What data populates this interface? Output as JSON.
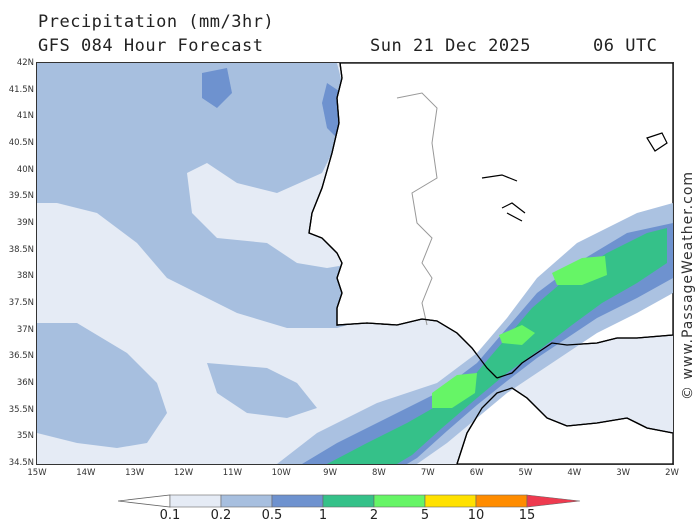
{
  "header": {
    "title": "Precipitation (mm/3hr)",
    "subtitle": "GFS 084 Hour Forecast",
    "datetime": "Sun 21 Dec 2025",
    "utc": "06 UTC"
  },
  "credit": "© www.PassageWeather.com",
  "axes": {
    "lat_labels": [
      "42N",
      "41.5N",
      "41N",
      "40.5N",
      "40N",
      "39.5N",
      "39N",
      "38.5N",
      "38N",
      "37.5N",
      "37N",
      "36.5N",
      "36N",
      "35.5N",
      "35N",
      "34.5N"
    ],
    "lon_labels": [
      "15W",
      "14W",
      "13W",
      "12W",
      "11W",
      "10W",
      "9W",
      "8W",
      "7W",
      "6W",
      "5W",
      "4W",
      "3W",
      "2W"
    ]
  },
  "legend": {
    "labels": [
      "0.1",
      "0.2",
      "0.5",
      "1",
      "2",
      "5",
      "10",
      "15"
    ],
    "colors": {
      "lt0_1": "#ffffff",
      "c0_1": "#e5ebf5",
      "c0_2": "#a7bfdf",
      "c0_5": "#6e92cf",
      "c1": "#35c189",
      "c2": "#66f566",
      "c5": "#ffe100",
      "c10": "#ff8c00",
      "c15": "#ee3a4f"
    }
  },
  "map": {
    "land_color": "#ffffff",
    "coast_color": "#000000",
    "border_color": "#999999"
  }
}
